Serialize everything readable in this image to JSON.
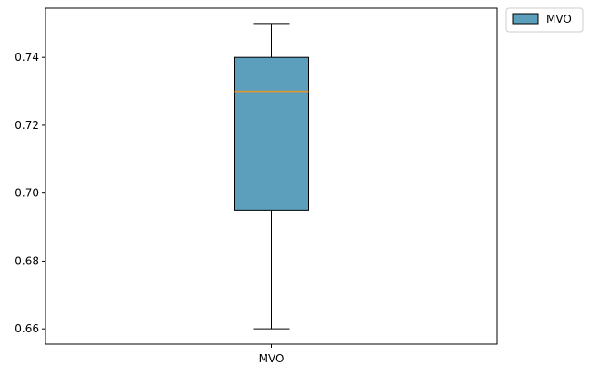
{
  "chart_data": {
    "type": "box",
    "title": "",
    "xlabel": "",
    "ylabel": "",
    "categories": [
      "MVO"
    ],
    "ylim": [
      0.6555,
      0.7545
    ],
    "yticks": [
      0.66,
      0.68,
      0.7,
      0.72,
      0.74
    ],
    "ytick_labels": [
      "0.66",
      "0.68",
      "0.70",
      "0.72",
      "0.74"
    ],
    "grid": false,
    "legend": {
      "position": "outside-top-right",
      "entries": [
        "MVO"
      ]
    },
    "series": [
      {
        "name": "MVO",
        "whisker_low": 0.66,
        "q1": 0.695,
        "median": 0.73,
        "q3": 0.74,
        "whisker_high": 0.75,
        "color": "#5b9fbc",
        "median_color": "#e8962a"
      }
    ]
  }
}
